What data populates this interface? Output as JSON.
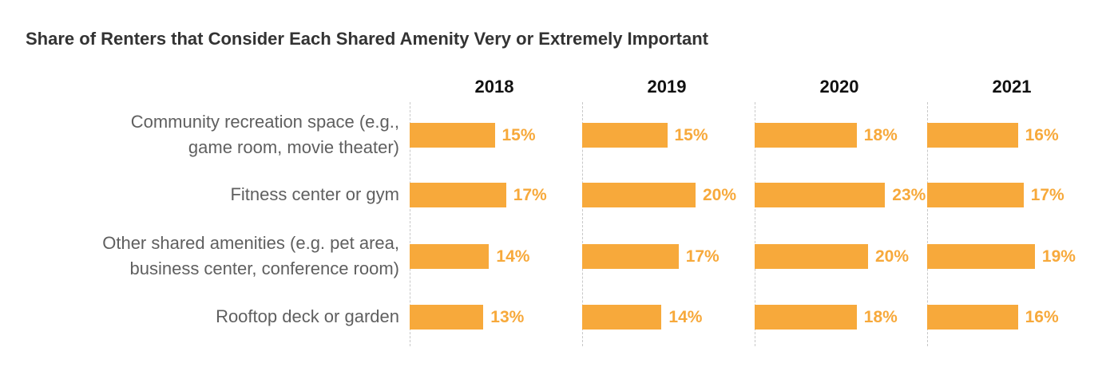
{
  "colors": {
    "bar": "#F7A93B",
    "value_text": "#F7A93B"
  },
  "chart_data": {
    "type": "bar",
    "orientation": "horizontal",
    "layout": "small-multiples",
    "title": "Share of Renters that Consider Each Shared Amenity Very or Extremely Important",
    "categories": [
      [
        "Community recreation space (e.g.,",
        "game room, movie theater)"
      ],
      [
        "Fitness center or gym"
      ],
      [
        "Other shared amenities (e.g. pet area,",
        "business center, conference room)"
      ],
      [
        "Rooftop deck or garden"
      ]
    ],
    "series": [
      {
        "name": "2018",
        "values": [
          15,
          17,
          14,
          13
        ]
      },
      {
        "name": "2019",
        "values": [
          15,
          20,
          17,
          14
        ]
      },
      {
        "name": "2020",
        "values": [
          18,
          23,
          20,
          18
        ]
      },
      {
        "name": "2021",
        "values": [
          16,
          17,
          19,
          16
        ]
      }
    ],
    "value_suffix": "%",
    "xlim": [
      0,
      60
    ],
    "grid": false,
    "legend": "none"
  }
}
